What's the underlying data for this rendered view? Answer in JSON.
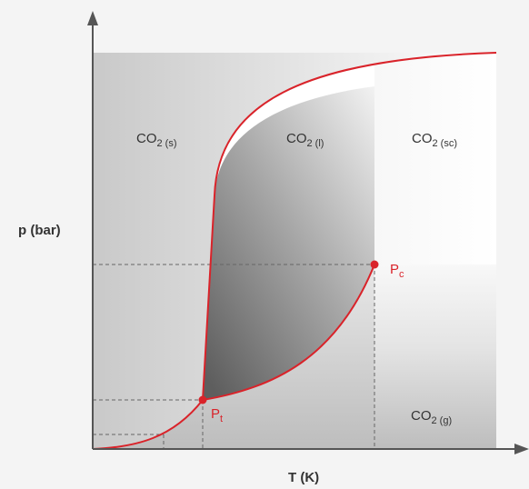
{
  "axes": {
    "x_label": "T (K)",
    "y_label": "p (bar)"
  },
  "regions": {
    "solid": {
      "main": "CO",
      "sub": "2 (s)"
    },
    "liquid": {
      "main": "CO",
      "sub": "2 (l)"
    },
    "supercritical": {
      "main": "CO",
      "sub": "2 (sc)"
    },
    "gas": {
      "main": "CO",
      "sub": "2 (g)"
    }
  },
  "points": {
    "triple": {
      "main": "P",
      "sub": "t"
    },
    "critical": {
      "main": "P",
      "sub": "c"
    }
  },
  "colors": {
    "curve": "#d9232a",
    "axis": "#555555",
    "guide": "#666666",
    "text": "#333333"
  }
}
